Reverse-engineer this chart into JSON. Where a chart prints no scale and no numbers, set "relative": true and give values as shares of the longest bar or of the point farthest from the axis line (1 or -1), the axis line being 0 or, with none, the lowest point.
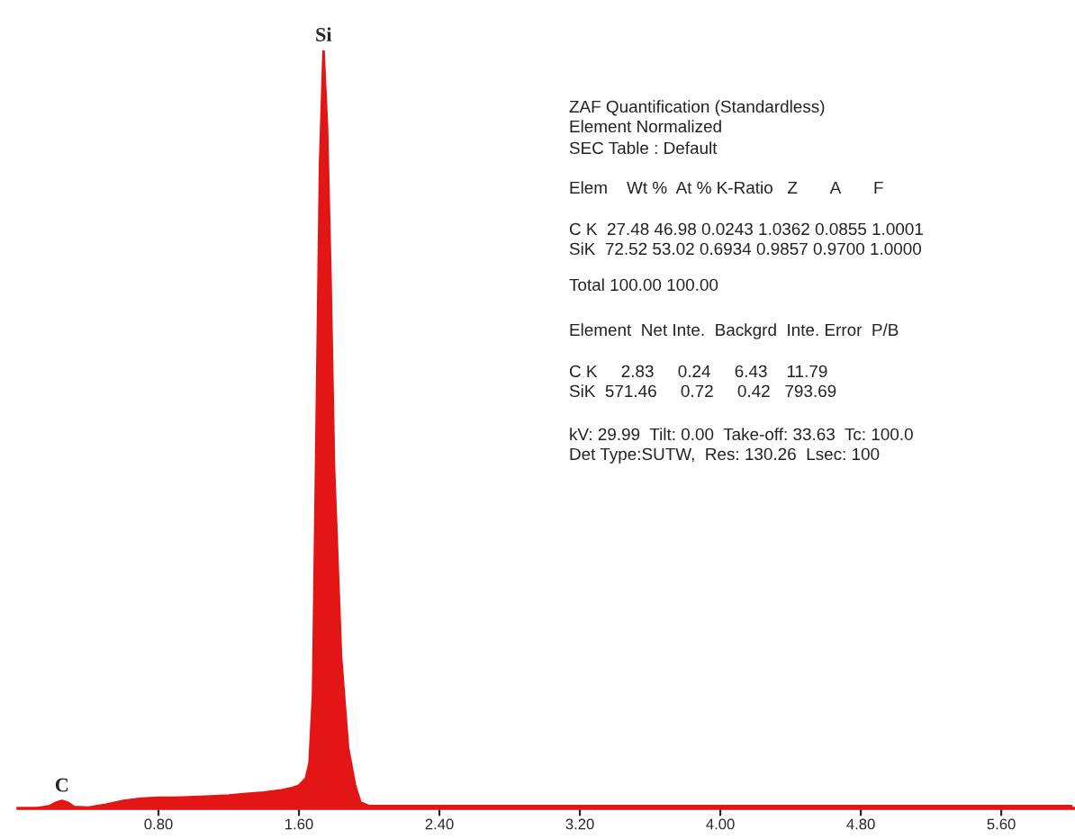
{
  "chart_data": {
    "type": "area",
    "relative": true,
    "color": "#e31515",
    "x": [
      0.1,
      0.18,
      0.22,
      0.25,
      0.28,
      0.32,
      0.4,
      0.5,
      0.6,
      0.7,
      0.8,
      0.9,
      1.0,
      1.1,
      1.2,
      1.3,
      1.4,
      1.5,
      1.56,
      1.6,
      1.64,
      1.66,
      1.68,
      1.7,
      1.72,
      1.74,
      1.76,
      1.78,
      1.8,
      1.84,
      1.88,
      1.92,
      1.95,
      2.0,
      2.4,
      3.0,
      4.0,
      5.0,
      6.0
    ],
    "values": [
      0,
      0.003,
      0.008,
      0.01,
      0.008,
      0.002,
      0.001,
      0.005,
      0.01,
      0.013,
      0.014,
      0.014,
      0.015,
      0.016,
      0.017,
      0.019,
      0.021,
      0.024,
      0.027,
      0.03,
      0.04,
      0.06,
      0.15,
      0.5,
      0.85,
      1.0,
      0.9,
      0.7,
      0.45,
      0.2,
      0.08,
      0.03,
      0.008,
      0.003,
      0.003,
      0.003,
      0.003,
      0.003,
      0.003
    ],
    "xlim": [
      0,
      6.02
    ],
    "xticks": [
      {
        "value": 0.8,
        "label": "0.80"
      },
      {
        "value": 1.6,
        "label": "1.60"
      },
      {
        "value": 2.4,
        "label": "2.40"
      },
      {
        "value": 3.2,
        "label": "3.20"
      },
      {
        "value": 4.0,
        "label": "4.00"
      },
      {
        "value": 4.8,
        "label": "4.80"
      },
      {
        "value": 5.6,
        "label": "5.60"
      }
    ],
    "grid": false,
    "legend": false,
    "annotations": [
      {
        "text": "Si",
        "x": 1.74,
        "y": 1.0
      },
      {
        "text": "C",
        "x": 0.25,
        "y": 0.01
      },
      "ZAF Quantification (Standardless)",
      "Element Normalized",
      "SEC Table : Default",
      "Elem    Wt %  At % K-Ratio   Z       A       F",
      "C K  27.48 46.98 0.0243 1.0362 0.0855 1.0001",
      "SiK  72.52 53.02 0.6934 0.9857 0.9700 1.0000",
      "Total 100.00 100.00",
      "Element  Net Inte.  Backgrd  Inte. Error  P/B",
      "C K     2.83     0.24     6.43    11.79",
      "SiK  571.46     0.72     0.42   793.69",
      "kV: 29.99  Tilt: 0.00  Take-off: 33.63  Tc: 100.0",
      "Det Type:SUTW,  Res: 130.26  Lsec: 100"
    ]
  }
}
